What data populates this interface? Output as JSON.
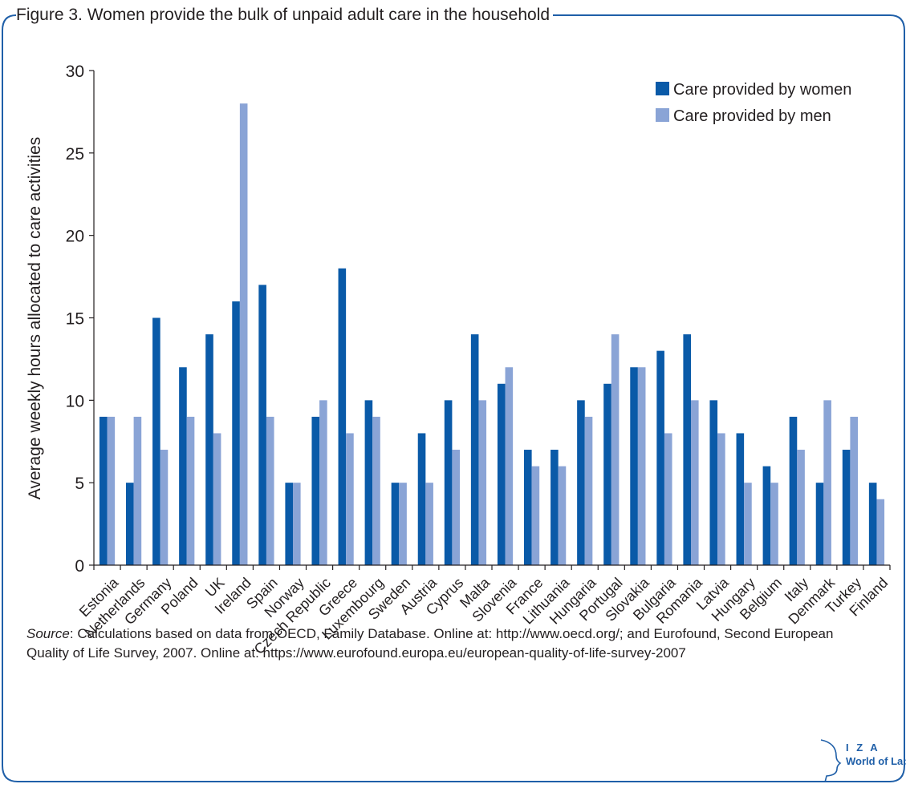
{
  "figure": {
    "title": "Figure 3. Women provide the bulk of unpaid adult care in the household"
  },
  "chart_data": {
    "type": "bar",
    "title": "Figure 3. Women provide the bulk of unpaid adult care in the household",
    "ylabel": "Average weekly hours allocated to care activities",
    "xlabel": "",
    "ylim": [
      0,
      30
    ],
    "yticks": [
      0,
      5,
      10,
      15,
      20,
      25,
      30
    ],
    "grid": false,
    "legend_position": "top-right",
    "categories": [
      "Estonia",
      "Netherlands",
      "Germany",
      "Poland",
      "UK",
      "Ireland",
      "Spain",
      "Norway",
      "Czech Republic",
      "Greece",
      "Luxembourg",
      "Sweden",
      "Austria",
      "Cyprus",
      "Malta",
      "Slovenia",
      "France",
      "Lithuania",
      "Hungaria",
      "Portugal",
      "Slovakia",
      "Bulgaria",
      "Romania",
      "Latvia",
      "Hungary",
      "Belgium",
      "Italy",
      "Denmark",
      "Turkey",
      "Finland"
    ],
    "series": [
      {
        "name": "Care provided by women",
        "color": "#0a5aa8",
        "values": [
          9,
          5,
          15,
          12,
          14,
          16,
          17,
          5,
          9,
          18,
          10,
          5,
          8,
          10,
          14,
          11,
          7,
          7,
          10,
          11,
          12,
          13,
          14,
          10,
          8,
          6,
          9,
          5,
          7,
          5
        ]
      },
      {
        "name": "Care provided by men",
        "color": "#8aa4d6",
        "values": [
          9,
          9,
          7,
          9,
          8,
          28,
          9,
          5,
          10,
          8,
          9,
          5,
          5,
          7,
          10,
          12,
          6,
          6,
          9,
          14,
          12,
          8,
          10,
          8,
          5,
          5,
          7,
          10,
          9,
          4
        ]
      }
    ]
  },
  "source": {
    "label": "Source",
    "text": ": Calculations based on data from OECD, Family Database. Online at: http://www.oecd.org/; and Eurofound, Second European Quality of Life Survey, 2007. Online at: https://www.eurofound.europa.eu/european-quality-of-life-survey-2007"
  },
  "logo": {
    "line1": "I Z A",
    "line2": "World of Labor"
  }
}
